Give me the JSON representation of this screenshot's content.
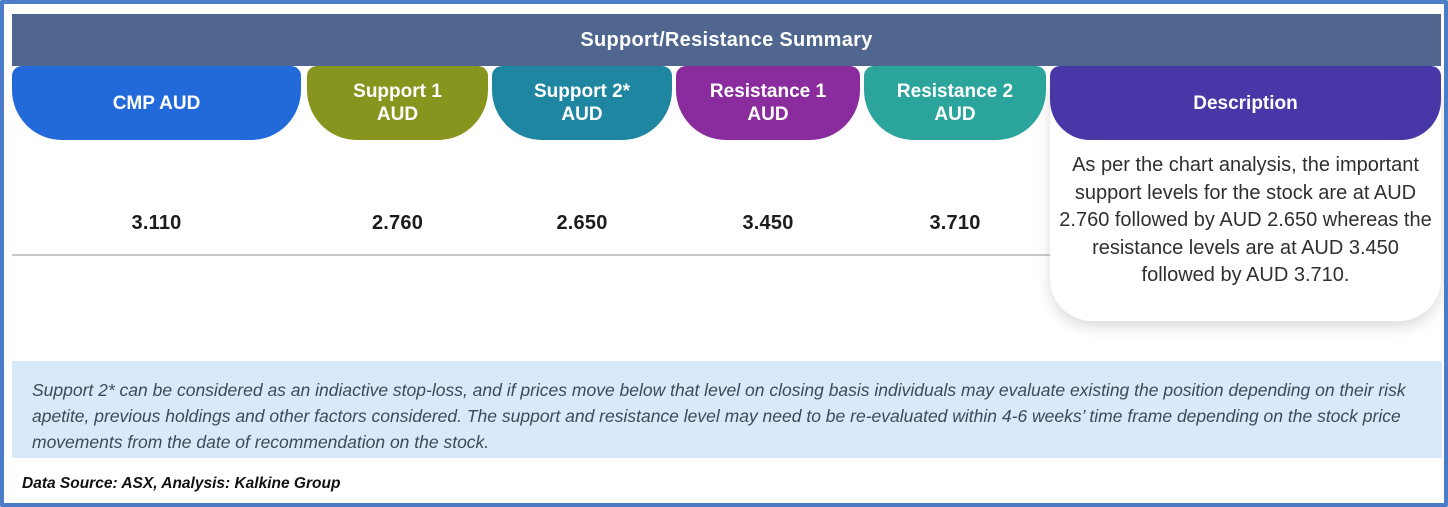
{
  "header": {
    "title": "Support/Resistance Summary"
  },
  "columns": [
    {
      "label": "CMP AUD",
      "value": "3.110",
      "color": "#2269D9"
    },
    {
      "label": "Support 1\nAUD",
      "value": "2.760",
      "color": "#87951E"
    },
    {
      "label": "Support 2*\nAUD",
      "value": "2.650",
      "color": "#1E86A0"
    },
    {
      "label": "Resistance 1\nAUD",
      "value": "3.450",
      "color": "#8A2C9D"
    },
    {
      "label": "Resistance 2\nAUD",
      "value": "3.710",
      "color": "#2BA49B"
    }
  ],
  "description": {
    "label": "Description",
    "color": "#4837A7",
    "text": "As per the chart analysis, the important support levels for the stock are at AUD 2.760 followed by AUD 2.650 whereas the resistance levels are at AUD 3.450 followed by AUD 3.710."
  },
  "disclaimer": "Support 2* can be considered as an indiactive stop-loss, and if prices move below that level on closing basis individuals may evaluate existing the position depending on their risk apetite, previous holdings and other factors considered. The support and resistance level may need to be re-evaluated within 4-6 weeks’ time frame depending on the stock price movements from  the date of recommendation on the stock.",
  "data_source": "Data Source: ASX, Analysis: Kalkine Group",
  "colors": {
    "outer_border": "#4C7CC7",
    "title_bar": "#50668F",
    "disclaimer_bg": "#D8EAF9",
    "divider": "#C9C9C9"
  }
}
